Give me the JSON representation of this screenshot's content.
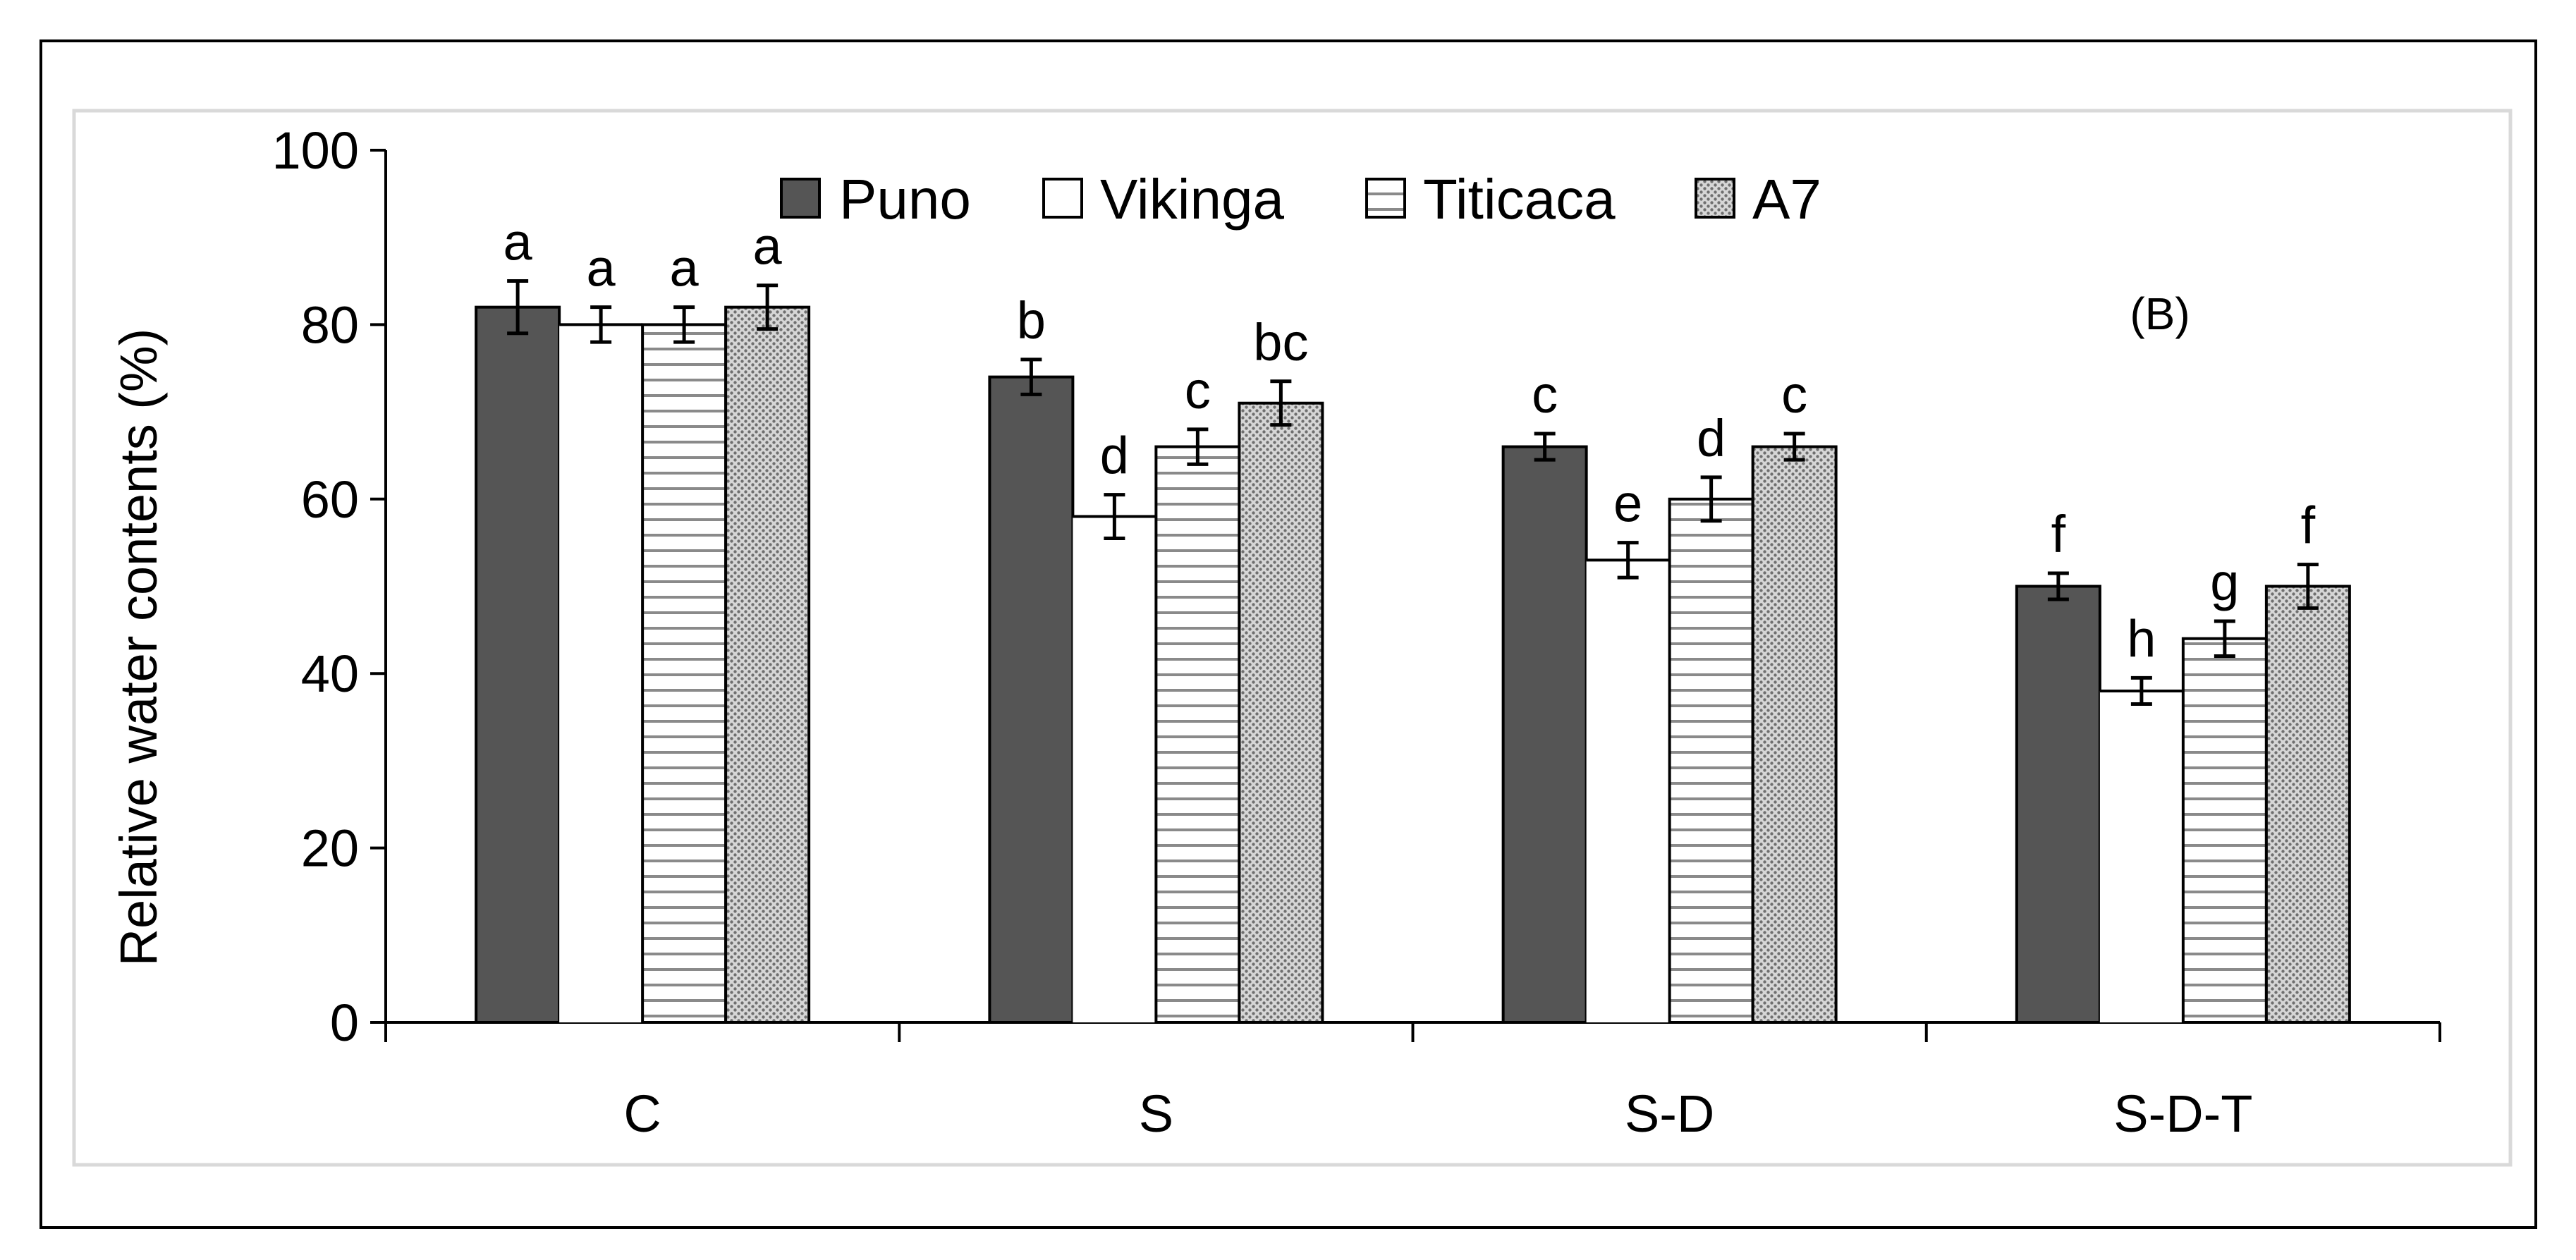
{
  "chart_data": {
    "type": "bar",
    "panel_label": "(B)",
    "ylabel": "Relative water contents (%)",
    "xlabel": "",
    "ylim": [
      0,
      100
    ],
    "yticks": [
      "0",
      "20",
      "40",
      "60",
      "80",
      "100"
    ],
    "categories": [
      "C",
      "S",
      "S-D",
      "S-D-T"
    ],
    "legend_position": "top",
    "series": [
      {
        "name": "Puno",
        "pattern": "solid-dark",
        "color": "#555555",
        "values": [
          82,
          74,
          66,
          50
        ],
        "errors": [
          3,
          2,
          1.5,
          1.5
        ],
        "letters": [
          "a",
          "b",
          "c",
          "f"
        ]
      },
      {
        "name": "Vikinga",
        "pattern": "white",
        "color": "#ffffff",
        "values": [
          80,
          58,
          53,
          38
        ],
        "errors": [
          2,
          2.5,
          2,
          1.5
        ],
        "letters": [
          "a",
          "d",
          "e",
          "h"
        ]
      },
      {
        "name": "Titicaca",
        "pattern": "horizontal-stripes",
        "color": "#888888",
        "values": [
          80,
          66,
          60,
          44
        ],
        "errors": [
          2,
          2,
          2.5,
          2
        ],
        "letters": [
          "a",
          "c",
          "d",
          "g"
        ]
      },
      {
        "name": "A7",
        "pattern": "dotted",
        "color": "#999999",
        "values": [
          82,
          71,
          66,
          50
        ],
        "errors": [
          2.5,
          2.5,
          1.5,
          2.5
        ],
        "letters": [
          "a",
          "bc",
          "c",
          "f"
        ]
      }
    ]
  }
}
